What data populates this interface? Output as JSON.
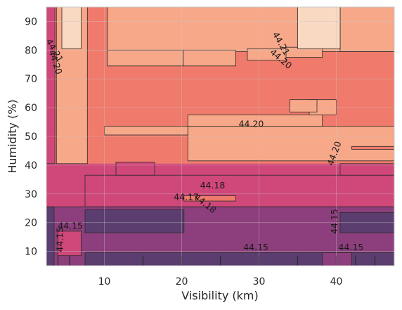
{
  "chart_data": {
    "type": "contour",
    "xlabel": "Visibility (km)",
    "ylabel": "Humidity (%)",
    "xlim": [
      2.5,
      47.5
    ],
    "ylim": [
      5,
      95
    ],
    "x_ticks": [
      10,
      20,
      30,
      40
    ],
    "y_ticks": [
      10,
      20,
      30,
      40,
      50,
      60,
      70,
      80,
      90
    ],
    "grid": true,
    "colors": {
      "level_1": "#5b3e6f",
      "level_2": "#8c3f7c",
      "level_3": "#d0477a",
      "level_4": "#f07a6b",
      "level_5": "#f7a889",
      "level_6": "#fad9c2",
      "line": "#2a2a2a",
      "grid": "#c8c8c8"
    },
    "levels": [
      44.15,
      44.17,
      44.18,
      44.2,
      44.21
    ],
    "bands": [
      {
        "y_from": 5,
        "y_to": 25,
        "level": "44.15"
      },
      {
        "y_from": 25,
        "y_to": 40,
        "level": "44.18"
      },
      {
        "y_from": 40,
        "y_to": 95,
        "level": "44.20"
      }
    ],
    "contour_labels": [
      {
        "text": "44.15",
        "x": 5.6,
        "y": 18.7,
        "rot": 0
      },
      {
        "text": "44.17",
        "x": 20.6,
        "y": 28.7,
        "rot": 0
      },
      {
        "text": "44.18",
        "x": 24.0,
        "y": 32.8,
        "rot": 0
      },
      {
        "text": "44.18",
        "x": 23.0,
        "y": 26.5,
        "rot": 38
      },
      {
        "text": "44.20",
        "x": 29.0,
        "y": 54.1,
        "rot": 0
      },
      {
        "text": "44.20",
        "x": 39.8,
        "y": 44.0,
        "rot": -70
      },
      {
        "text": "44.21",
        "x": 32.8,
        "y": 82.2,
        "rot": 60
      },
      {
        "text": "44.20",
        "x": 32.8,
        "y": 76.8,
        "rot": 40
      },
      {
        "text": "44.21",
        "x": 3.5,
        "y": 79.8,
        "rot": 60
      },
      {
        "text": "44.20",
        "x": 3.6,
        "y": 75.8,
        "rot": 72
      },
      {
        "text": "44.15",
        "x": 4.3,
        "y": 14.1,
        "rot": -90
      },
      {
        "text": "44.15",
        "x": 29.6,
        "y": 11.2,
        "rot": 0
      },
      {
        "text": "44.15",
        "x": 41.9,
        "y": 11.2,
        "rot": 0
      },
      {
        "text": "44.15",
        "x": 39.8,
        "y": 20.4,
        "rot": -90
      }
    ]
  }
}
